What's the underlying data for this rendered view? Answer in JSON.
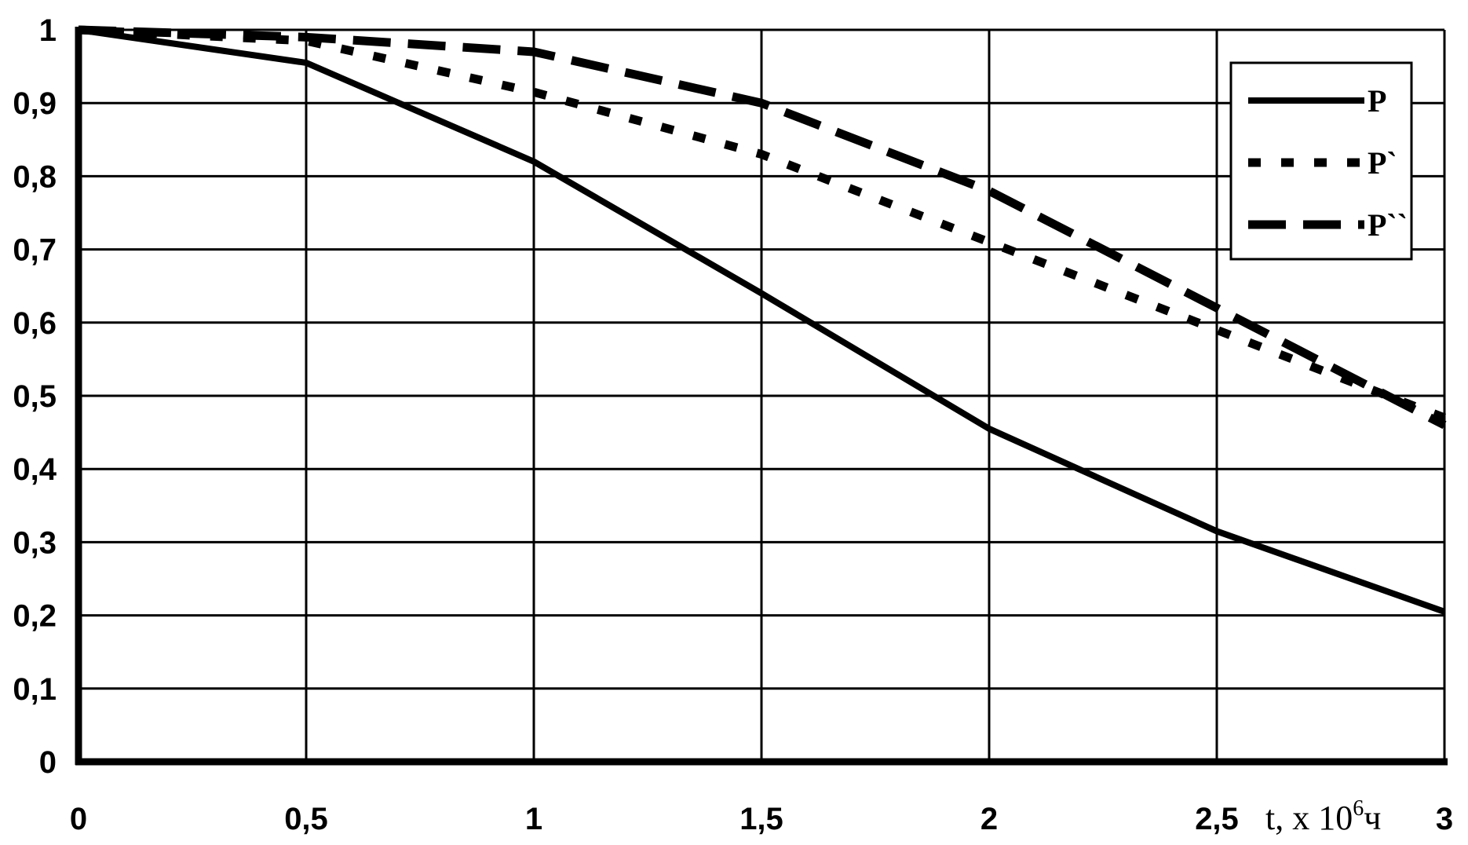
{
  "chart_data": {
    "type": "line",
    "title": "",
    "xlabel": {
      "prefix": "t, x 10",
      "superscript": "6",
      "suffix": "ч"
    },
    "ylabel": "",
    "xlim": [
      0,
      3
    ],
    "ylim": [
      0,
      1
    ],
    "grid": true,
    "legend_position": "top-right",
    "x_ticks": [
      "0",
      "0,5",
      "1",
      "1,5",
      "2",
      "2,5",
      "3"
    ],
    "y_ticks": [
      "0",
      "0,1",
      "0,2",
      "0,3",
      "0,4",
      "0,5",
      "0,6",
      "0,7",
      "0,8",
      "0,9",
      "1"
    ],
    "x": [
      0,
      0.5,
      1.0,
      1.5,
      2.0,
      2.5,
      3.0
    ],
    "series": [
      {
        "name": "P",
        "style": "solid",
        "values": [
          1.0,
          0.955,
          0.82,
          0.64,
          0.455,
          0.315,
          0.205
        ]
      },
      {
        "name": "P`",
        "style": "dotted",
        "values": [
          1.0,
          0.985,
          0.915,
          0.83,
          0.71,
          0.59,
          0.47
        ]
      },
      {
        "name": "P``",
        "style": "dashed",
        "values": [
          1.0,
          0.99,
          0.97,
          0.9,
          0.78,
          0.62,
          0.46
        ]
      }
    ],
    "colors": {
      "line": "#000000",
      "grid": "#000000",
      "background": "#ffffff"
    }
  }
}
